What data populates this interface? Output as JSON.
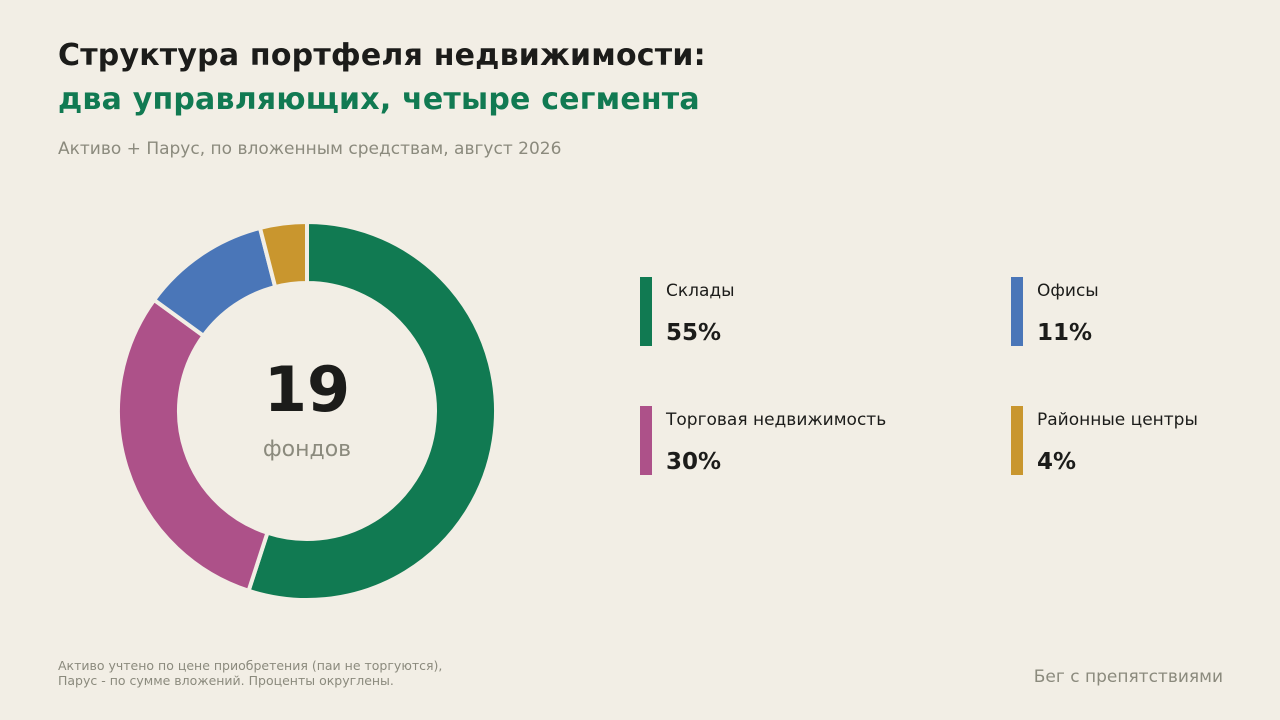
{
  "title_line1": "Структура портфеля недвижимости:",
  "title_line2": "два управляющих, четыре сегмента",
  "subtitle": "Активо + Парус, по вложенным средствам, август 2026",
  "center": {
    "number": "19",
    "unit": "фондов"
  },
  "footnote": {
    "line1": "Активо учтено по цене приобретения (паи не торгуются),",
    "line2": "Парус - по сумме вложений. Проценты округлены."
  },
  "brand": "Бег с препятствиями",
  "chart_data": {
    "type": "pie",
    "style": "donut",
    "categories": [
      "Склады",
      "Офисы",
      "Торговая недвижимость",
      "Районные центры"
    ],
    "values": [
      55,
      11,
      30,
      4
    ],
    "value_labels": [
      "55%",
      "11%",
      "30%",
      "4%"
    ],
    "colors": [
      "#117a52",
      "#4a76b8",
      "#ad5189",
      "#c9962e"
    ],
    "slice_order": [
      0,
      2,
      1,
      3
    ],
    "legend_placement": "right"
  }
}
